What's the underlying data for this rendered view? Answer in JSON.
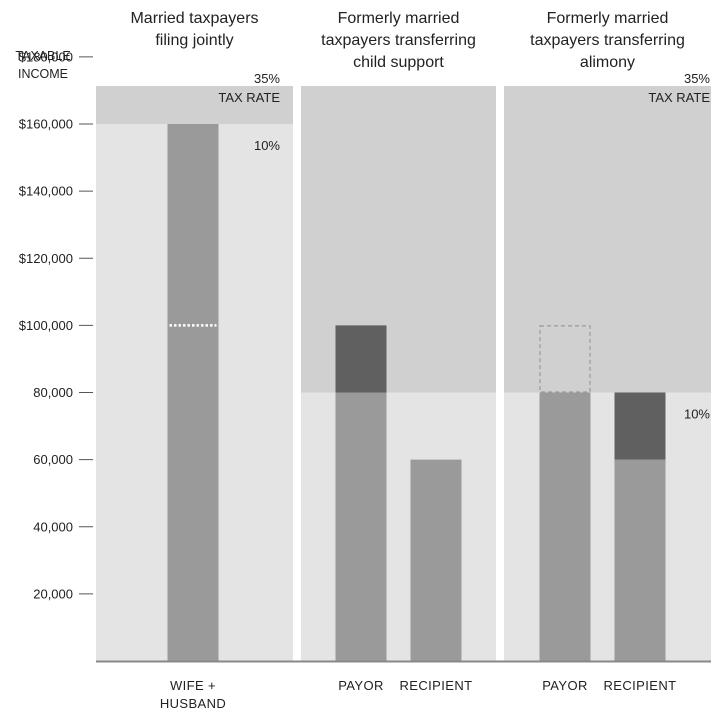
{
  "chart_data": {
    "type": "bar",
    "ylabel": [
      "TAXABLE",
      "INCOME"
    ],
    "ylim": [
      0,
      180000
    ],
    "yticks": [
      {
        "value": 180000,
        "label": "$180,000"
      },
      {
        "value": 160000,
        "label": "$160,000"
      },
      {
        "value": 140000,
        "label": "$140,000"
      },
      {
        "value": 120000,
        "label": "$120,000"
      },
      {
        "value": 100000,
        "label": "$100,000"
      },
      {
        "value": 80000,
        "label": "80,000"
      },
      {
        "value": 60000,
        "label": "60,000"
      },
      {
        "value": 40000,
        "label": "40,000"
      },
      {
        "value": 20000,
        "label": "20,000"
      }
    ],
    "colors": {
      "band_high": "#d0d0d0",
      "band_low": "#e4e4e4",
      "bar": "#9a9a9a",
      "bar_dark": "#5f605f",
      "dashed": "#9a9a9a",
      "axis": "#888888"
    },
    "panels": [
      {
        "title": [
          "Married taxpayers",
          "filing jointly"
        ],
        "bracket_threshold": 160000,
        "rate_labels": [
          {
            "value": 180000,
            "lines": [
              "35%",
              "TAX RATE"
            ]
          },
          {
            "value": 160000,
            "lines": [
              "10%"
            ]
          }
        ],
        "bars": [
          {
            "category": [
              "WIFE +",
              "HUSBAND"
            ],
            "segments": [
              {
                "from": 0,
                "to": 160000,
                "style": "bar"
              }
            ],
            "divider": {
              "value": 100000,
              "style": "dotted"
            }
          }
        ]
      },
      {
        "title": [
          "Formerly married",
          "taxpayers transferring",
          "child support"
        ],
        "bracket_threshold": 80000,
        "rate_labels": [],
        "bars": [
          {
            "category": [
              "PAYOR"
            ],
            "segments": [
              {
                "from": 0,
                "to": 80000,
                "style": "bar"
              },
              {
                "from": 80000,
                "to": 100000,
                "style": "bar_dark"
              }
            ]
          },
          {
            "category": [
              "RECIPIENT"
            ],
            "segments": [
              {
                "from": 0,
                "to": 60000,
                "style": "bar"
              }
            ]
          }
        ]
      },
      {
        "title": [
          "Formerly married",
          "taxpayers transferring",
          "alimony"
        ],
        "bracket_threshold": 80000,
        "rate_labels": [
          {
            "value": 180000,
            "lines": [
              "35%",
              "TAX RATE"
            ]
          },
          {
            "value": 80000,
            "lines": [
              "10%"
            ]
          }
        ],
        "bars": [
          {
            "category": [
              "PAYOR"
            ],
            "segments": [
              {
                "from": 0,
                "to": 80000,
                "style": "bar"
              },
              {
                "from": 80000,
                "to": 100000,
                "style": "dashed"
              }
            ]
          },
          {
            "category": [
              "RECIPIENT"
            ],
            "segments": [
              {
                "from": 0,
                "to": 60000,
                "style": "bar"
              },
              {
                "from": 60000,
                "to": 80000,
                "style": "bar_dark"
              }
            ]
          }
        ]
      }
    ]
  }
}
